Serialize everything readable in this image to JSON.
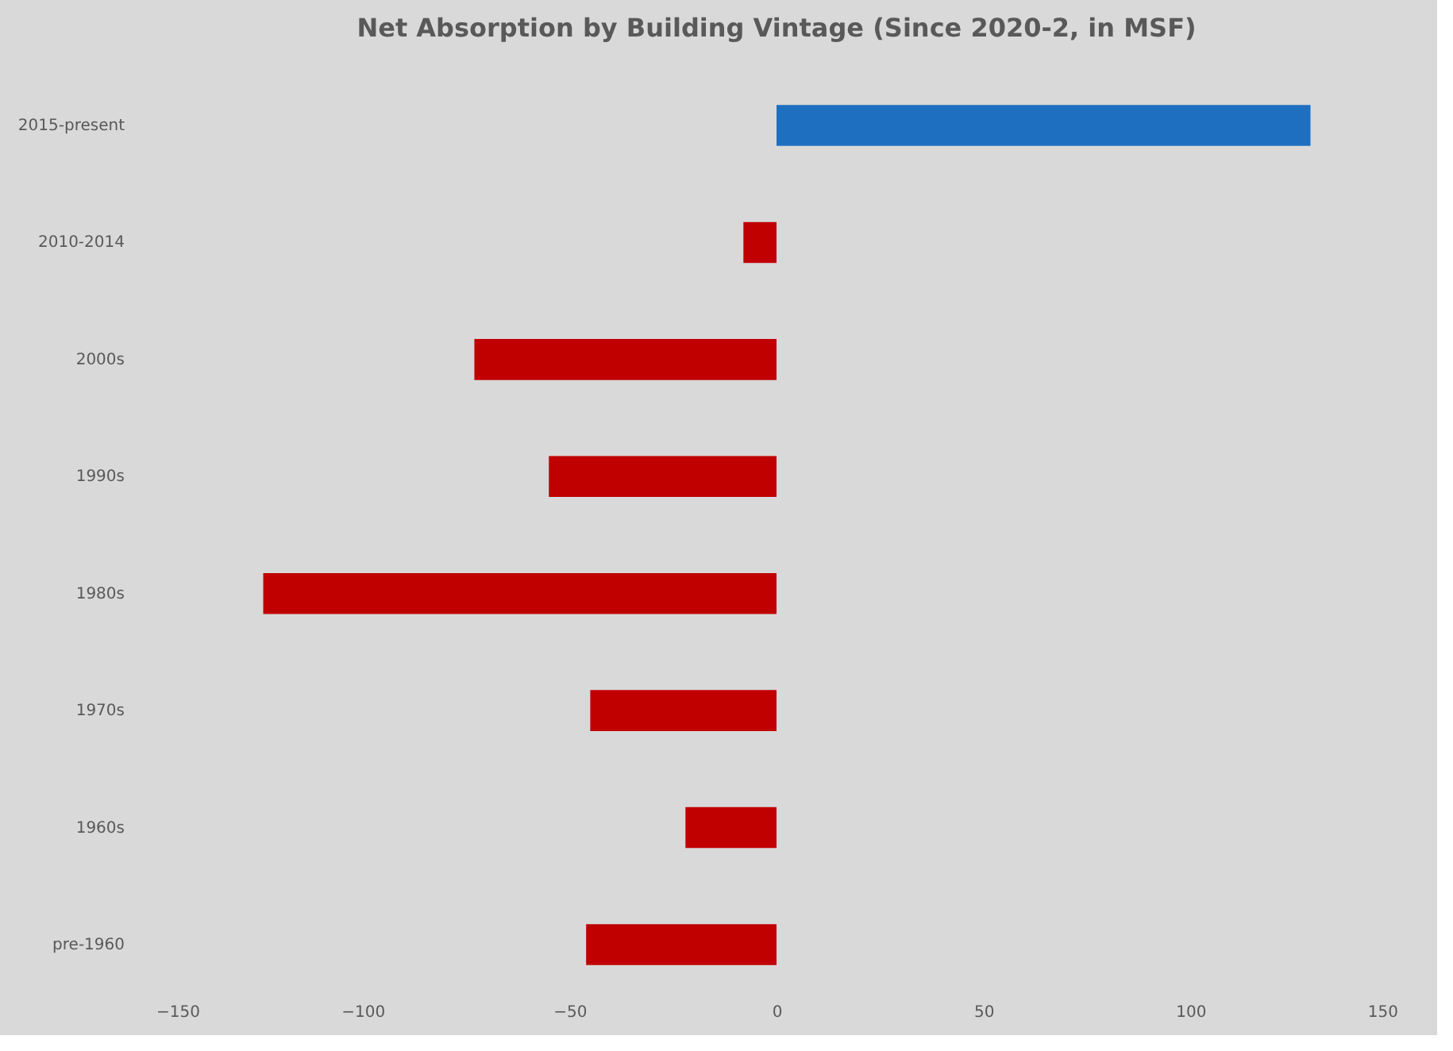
{
  "chart_data": {
    "type": "bar",
    "orientation": "horizontal",
    "title": "Net Absorption by Building Vintage (Since 2020-2, in MSF)",
    "categories": [
      "2015-present",
      "2010-2014",
      "2000s",
      "1990s",
      "1980s",
      "1970s",
      "1960s",
      "pre-1960"
    ],
    "values": [
      129,
      -8,
      -73,
      -55,
      -124,
      -45,
      -22,
      -46
    ],
    "colors": [
      "#1f6fc0",
      "#c00000",
      "#c00000",
      "#c00000",
      "#c00000",
      "#c00000",
      "#c00000",
      "#c00000"
    ],
    "xlim": [
      -150,
      150
    ],
    "xticks": [
      -150,
      -100,
      -50,
      0,
      50,
      100,
      150
    ]
  }
}
